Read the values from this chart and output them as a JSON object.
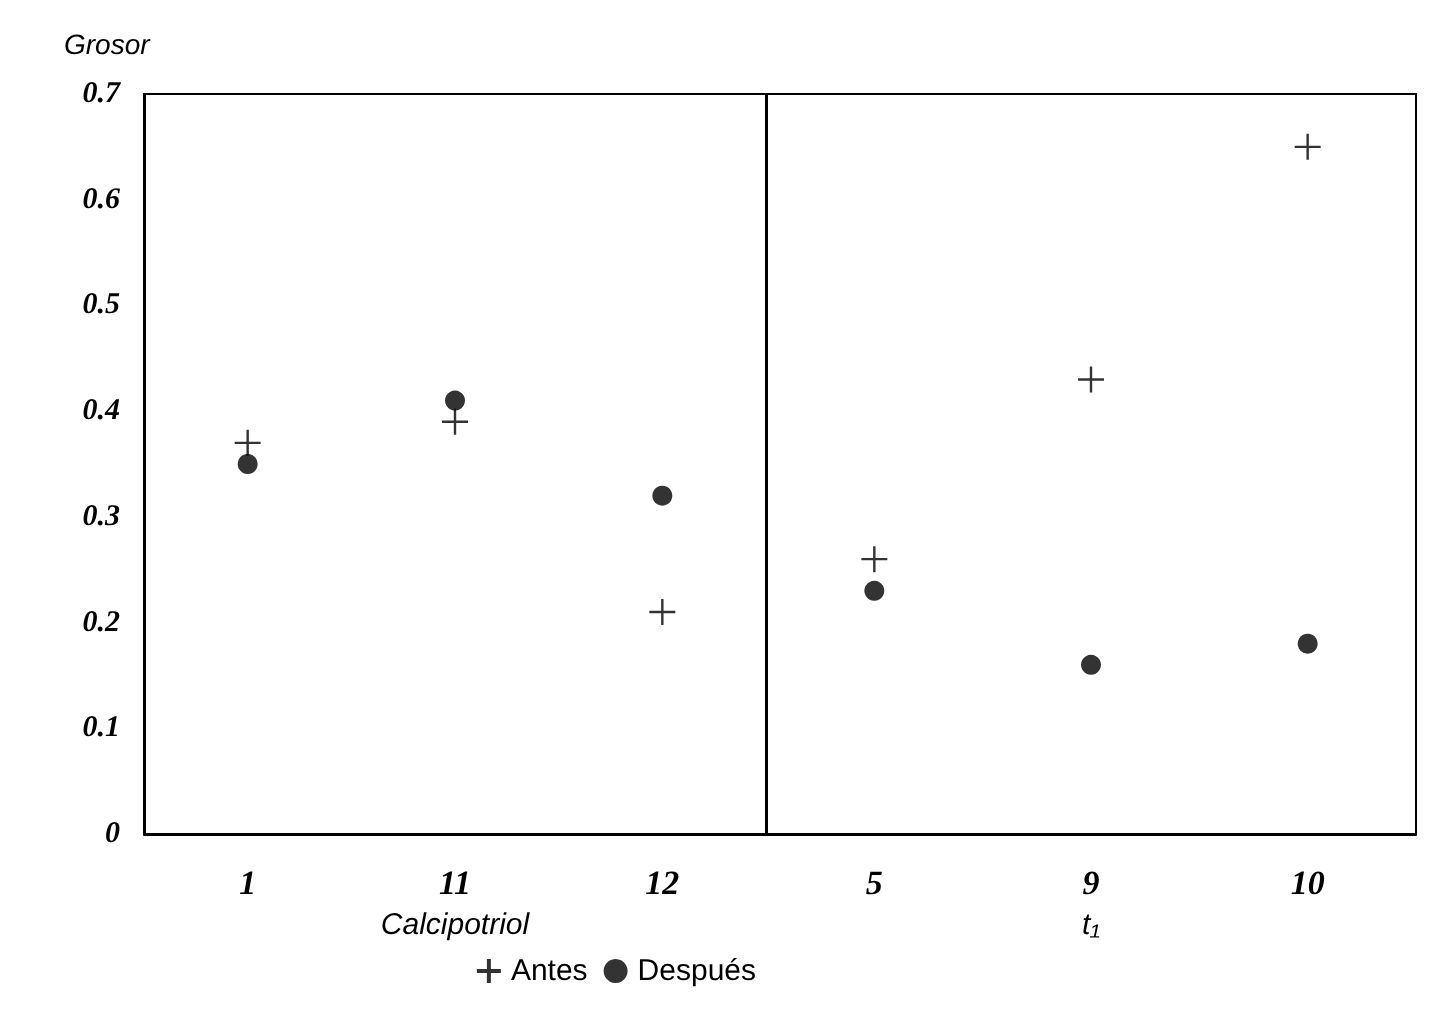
{
  "chart_data": [
    {
      "type": "scatter",
      "ylabel": "Grosor",
      "xlabel": "Calcipotriol",
      "categories": [
        "1",
        "11",
        "12"
      ],
      "ylim": [
        0,
        0.7
      ],
      "yticks": [
        0,
        0.1,
        0.2,
        0.3,
        0.4,
        0.5,
        0.6,
        0.7
      ],
      "grid": false,
      "legend": "bottom",
      "series": [
        {
          "name": "Antes",
          "color": "#000000",
          "marker": "cross",
          "values": [
            0.37,
            0.39,
            0.21
          ]
        },
        {
          "name": "Después",
          "color": "#000000",
          "marker": "circle",
          "values": [
            0.35,
            0.41,
            0.32
          ]
        }
      ]
    },
    {
      "type": "scatter",
      "xlabel": "t₁",
      "categories": [
        "5",
        "9",
        "10"
      ],
      "ylim": [
        0,
        0.7
      ],
      "yticks": [
        0,
        0.1,
        0.2,
        0.3,
        0.4,
        0.5,
        0.6,
        0.7
      ],
      "grid": false,
      "tick_labels": "x",
      "series": [
        {
          "color": "#000000",
          "marker": "cross",
          "values": [
            0.26,
            0.43,
            0.65
          ]
        },
        {
          "color": "#000000",
          "marker": "circle",
          "values": [
            0.23,
            0.16,
            0.18
          ]
        }
      ]
    }
  ]
}
